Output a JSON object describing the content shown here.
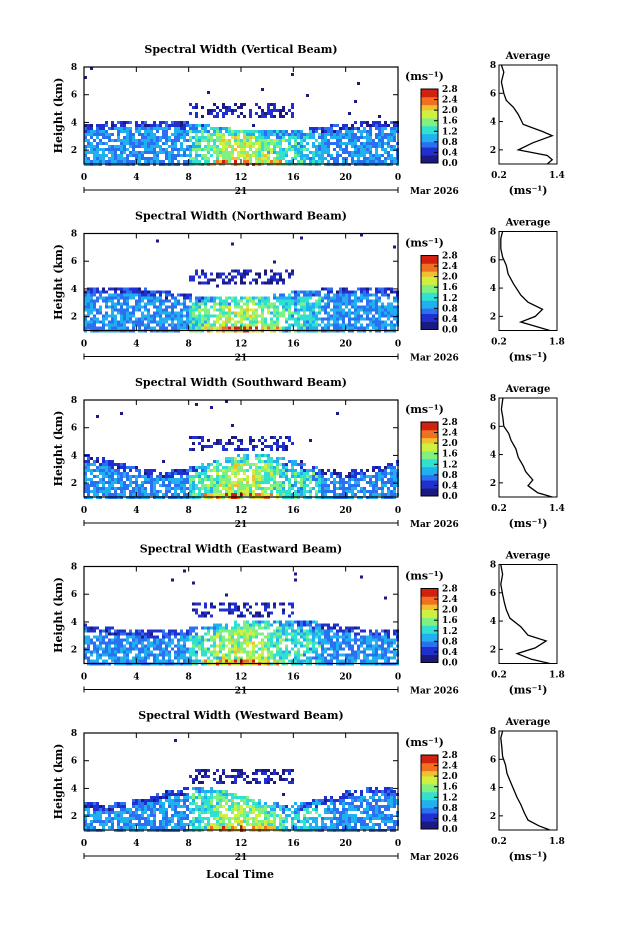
{
  "figure": {
    "date_label": "Mar 2026",
    "day_label": "21",
    "xlabel": "Local Time",
    "ylabel": "Height (km)",
    "x_ticks": [
      "0",
      "4",
      "8",
      "12",
      "16",
      "20",
      "0"
    ],
    "y_ticks": [
      "2",
      "4",
      "6",
      "8"
    ],
    "colorbar_unit": "(ms⁻¹)",
    "colorbar_ticks": [
      "0.0",
      "0.4",
      "0.8",
      "1.2",
      "1.6",
      "2.0",
      "2.4",
      "2.8"
    ],
    "avg_title": "Average",
    "avg_unit": "(ms⁻¹)",
    "avg_y_ticks": [
      "2",
      "4",
      "6",
      "8"
    ],
    "colors": {
      "scale": [
        "#1a1a80",
        "#2030d0",
        "#2a70f0",
        "#20b0f0",
        "#30e0d0",
        "#80f080",
        "#d0f040",
        "#f0c030",
        "#f07020",
        "#d02010"
      ]
    }
  },
  "chart_data": [
    {
      "type": "heatmap",
      "title": "Spectral Width (Vertical Beam)",
      "xlabel": "Local Time",
      "ylabel": "Height (km)",
      "xlim": [
        0,
        24
      ],
      "ylim": [
        1,
        8
      ],
      "zlim": [
        0.0,
        2.8
      ],
      "avg_xticks": [
        "0.2",
        "1.4"
      ],
      "avg_xlim": [
        0.2,
        1.4
      ],
      "avg_profile": [
        [
          1.2,
          1.0
        ],
        [
          1.3,
          1.3
        ],
        [
          1.2,
          1.6
        ],
        [
          0.6,
          2.0
        ],
        [
          0.9,
          2.5
        ],
        [
          1.3,
          3.0
        ],
        [
          1.1,
          3.3
        ],
        [
          0.7,
          3.8
        ],
        [
          0.6,
          4.5
        ],
        [
          0.5,
          5.0
        ],
        [
          0.35,
          5.5
        ],
        [
          0.3,
          6.0
        ],
        [
          0.25,
          6.8
        ],
        [
          0.3,
          7.5
        ],
        [
          0.25,
          8.0
        ]
      ]
    },
    {
      "type": "heatmap",
      "title": "Spectral Width (Northward Beam)",
      "xlabel": "Local Time",
      "ylabel": "Height (km)",
      "xlim": [
        0,
        24
      ],
      "ylim": [
        1,
        8
      ],
      "zlim": [
        0.0,
        2.8
      ],
      "avg_xticks": [
        "0.2",
        "1.8"
      ],
      "avg_xlim": [
        0.2,
        1.8
      ],
      "avg_profile": [
        [
          1.6,
          1.0
        ],
        [
          1.2,
          1.3
        ],
        [
          0.8,
          1.6
        ],
        [
          1.2,
          2.0
        ],
        [
          1.4,
          2.5
        ],
        [
          1.0,
          3.0
        ],
        [
          0.8,
          3.5
        ],
        [
          0.6,
          4.3
        ],
        [
          0.45,
          5.0
        ],
        [
          0.4,
          5.6
        ],
        [
          0.3,
          6.2
        ],
        [
          0.25,
          6.8
        ],
        [
          0.25,
          7.5
        ],
        [
          0.3,
          8.0
        ]
      ]
    },
    {
      "type": "heatmap",
      "title": "Spectral Width (Southward Beam)",
      "xlabel": "Local Time",
      "ylabel": "Height (km)",
      "xlim": [
        0,
        24
      ],
      "ylim": [
        1,
        8
      ],
      "zlim": [
        0.0,
        2.8
      ],
      "avg_xticks": [
        "0.2",
        "1.4"
      ],
      "avg_xlim": [
        0.2,
        1.4
      ],
      "avg_profile": [
        [
          1.3,
          1.0
        ],
        [
          1.0,
          1.3
        ],
        [
          0.8,
          1.8
        ],
        [
          0.9,
          2.2
        ],
        [
          0.75,
          2.8
        ],
        [
          0.7,
          3.2
        ],
        [
          0.6,
          3.8
        ],
        [
          0.55,
          4.4
        ],
        [
          0.45,
          5.0
        ],
        [
          0.4,
          5.5
        ],
        [
          0.3,
          6.0
        ],
        [
          0.28,
          6.6
        ],
        [
          0.25,
          7.2
        ],
        [
          0.28,
          8.0
        ]
      ]
    },
    {
      "type": "heatmap",
      "title": "Spectral Width (Eastward Beam)",
      "xlabel": "Local Time",
      "ylabel": "Height (km)",
      "xlim": [
        0,
        24
      ],
      "ylim": [
        1,
        8
      ],
      "zlim": [
        0.0,
        2.8
      ],
      "avg_xticks": [
        "0.2",
        "1.8"
      ],
      "avg_xlim": [
        0.2,
        1.8
      ],
      "avg_profile": [
        [
          1.6,
          1.0
        ],
        [
          1.1,
          1.3
        ],
        [
          0.7,
          1.7
        ],
        [
          1.2,
          2.1
        ],
        [
          1.5,
          2.6
        ],
        [
          1.0,
          3.0
        ],
        [
          0.8,
          3.6
        ],
        [
          0.5,
          4.2
        ],
        [
          0.4,
          4.8
        ],
        [
          0.35,
          5.3
        ],
        [
          0.3,
          5.9
        ],
        [
          0.25,
          6.6
        ],
        [
          0.3,
          7.3
        ],
        [
          0.25,
          8.0
        ]
      ]
    },
    {
      "type": "heatmap",
      "title": "Spectral Width (Westward Beam)",
      "xlabel": "Local Time",
      "ylabel": "Height (km)",
      "xlim": [
        0,
        24
      ],
      "ylim": [
        1,
        8
      ],
      "zlim": [
        0.0,
        2.8
      ],
      "avg_xticks": [
        "0.2",
        "1.8"
      ],
      "avg_xlim": [
        0.2,
        1.8
      ],
      "avg_profile": [
        [
          1.6,
          1.0
        ],
        [
          1.3,
          1.3
        ],
        [
          1.0,
          1.7
        ],
        [
          0.9,
          2.2
        ],
        [
          0.8,
          2.8
        ],
        [
          0.7,
          3.3
        ],
        [
          0.6,
          3.9
        ],
        [
          0.5,
          4.5
        ],
        [
          0.42,
          5.0
        ],
        [
          0.38,
          5.6
        ],
        [
          0.3,
          6.2
        ],
        [
          0.28,
          6.8
        ],
        [
          0.25,
          7.5
        ],
        [
          0.3,
          8.0
        ]
      ]
    }
  ]
}
